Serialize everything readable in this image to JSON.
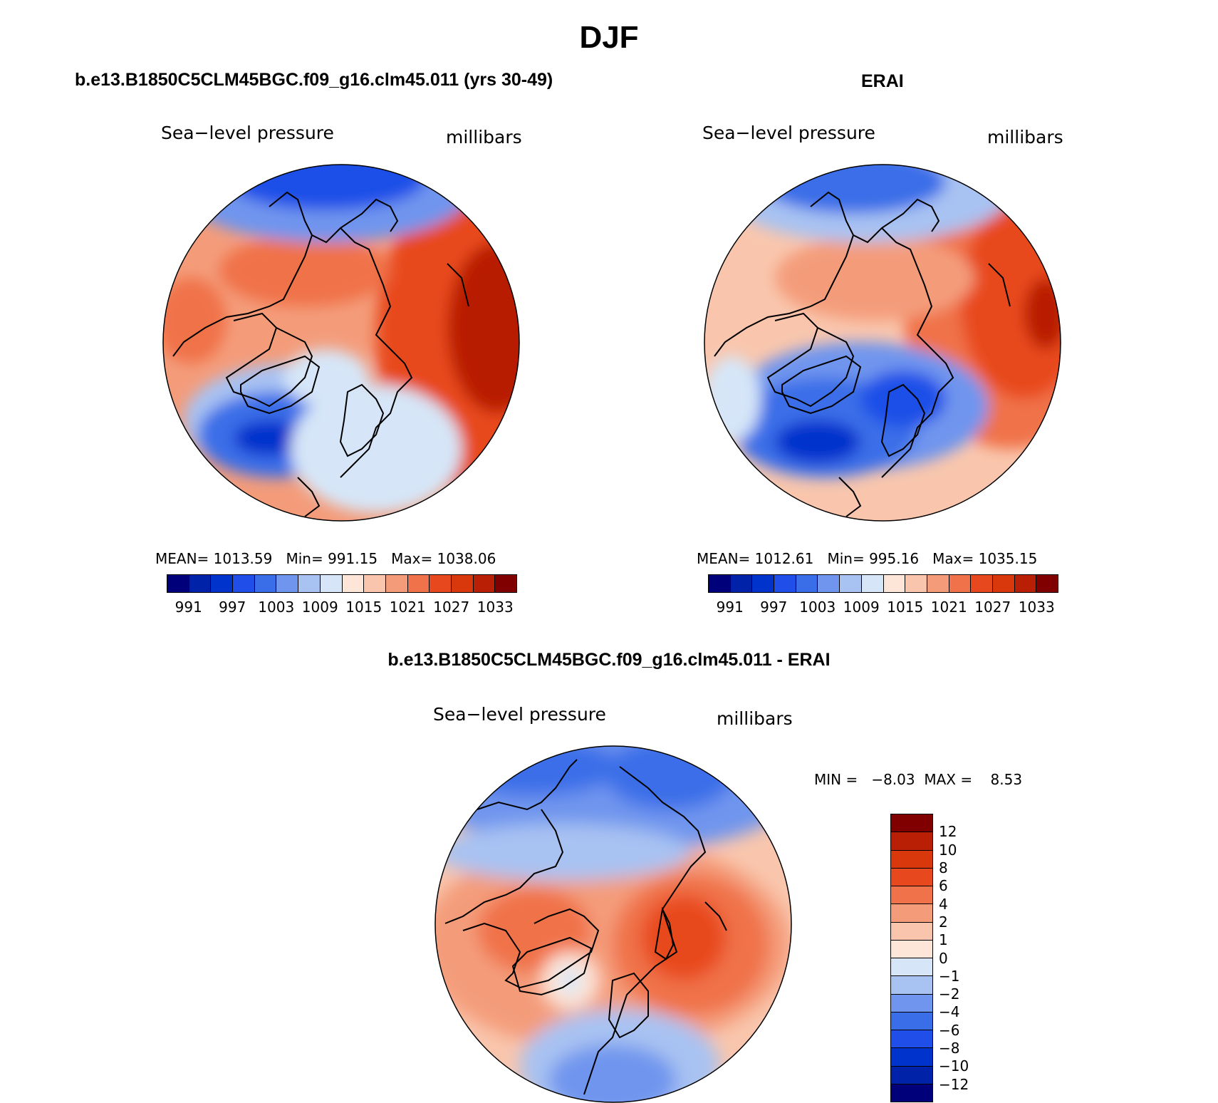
{
  "page": {
    "title": "DJF",
    "diff_title": "b.e13.B1850C5CLM45BGC.f09_g16.clm45.011 - ERAI"
  },
  "colors": {
    "abs_scale": [
      "#00007a",
      "#0022a8",
      "#0033cc",
      "#1f4fe8",
      "#3a6ee8",
      "#6f95ee",
      "#a8c2f2",
      "#d6e6f8",
      "#fde6d8",
      "#f9c6ad",
      "#f49c7a",
      "#f0724a",
      "#e8481e",
      "#d9380c",
      "#b81f04",
      "#800000"
    ],
    "diff_scale": [
      "#800000",
      "#b81f04",
      "#d9380c",
      "#e8481e",
      "#f0724a",
      "#f49c7a",
      "#f9c6ad",
      "#fde6d8",
      "#d6e6f8",
      "#a8c2f2",
      "#6f95ee",
      "#3a6ee8",
      "#1f4fe8",
      "#0033cc",
      "#0022a8",
      "#00007a"
    ],
    "coast": "#000000"
  },
  "panels": {
    "model": {
      "title": "b.e13.B1850C5CLM45BGC.f09_g16.clm45.011 (yrs 30-49)",
      "left_label": "Sea−level pressure",
      "right_label": "millibars",
      "stats": {
        "mean_label": "MEAN=",
        "mean": "1013.59",
        "min_label": "Min=",
        "min": "991.15",
        "max_label": "Max=",
        "max": "1038.06"
      },
      "colorbar_labels": [
        "991",
        "997",
        "1003",
        "1009",
        "1015",
        "1021",
        "1027",
        "1033"
      ]
    },
    "obs": {
      "title": "ERAI",
      "left_label": "Sea−level pressure",
      "right_label": "millibars",
      "stats": {
        "mean_label": "MEAN=",
        "mean": "1012.61",
        "min_label": "Min=",
        "min": "995.16",
        "max_label": "Max=",
        "max": "1035.15"
      },
      "colorbar_labels": [
        "991",
        "997",
        "1003",
        "1009",
        "1015",
        "1021",
        "1027",
        "1033"
      ]
    },
    "diff": {
      "left_label": "Sea−level pressure",
      "right_label": "millibars",
      "min_label": "MIN =",
      "min": "−8.03",
      "max_label": "MAX =",
      "max": "8.53",
      "colorbar_labels": [
        "12",
        "10",
        "8",
        "6",
        "4",
        "2",
        "1",
        "0",
        "−1",
        "−2",
        "−4",
        "−6",
        "−8",
        "−10",
        "−12"
      ]
    }
  }
}
